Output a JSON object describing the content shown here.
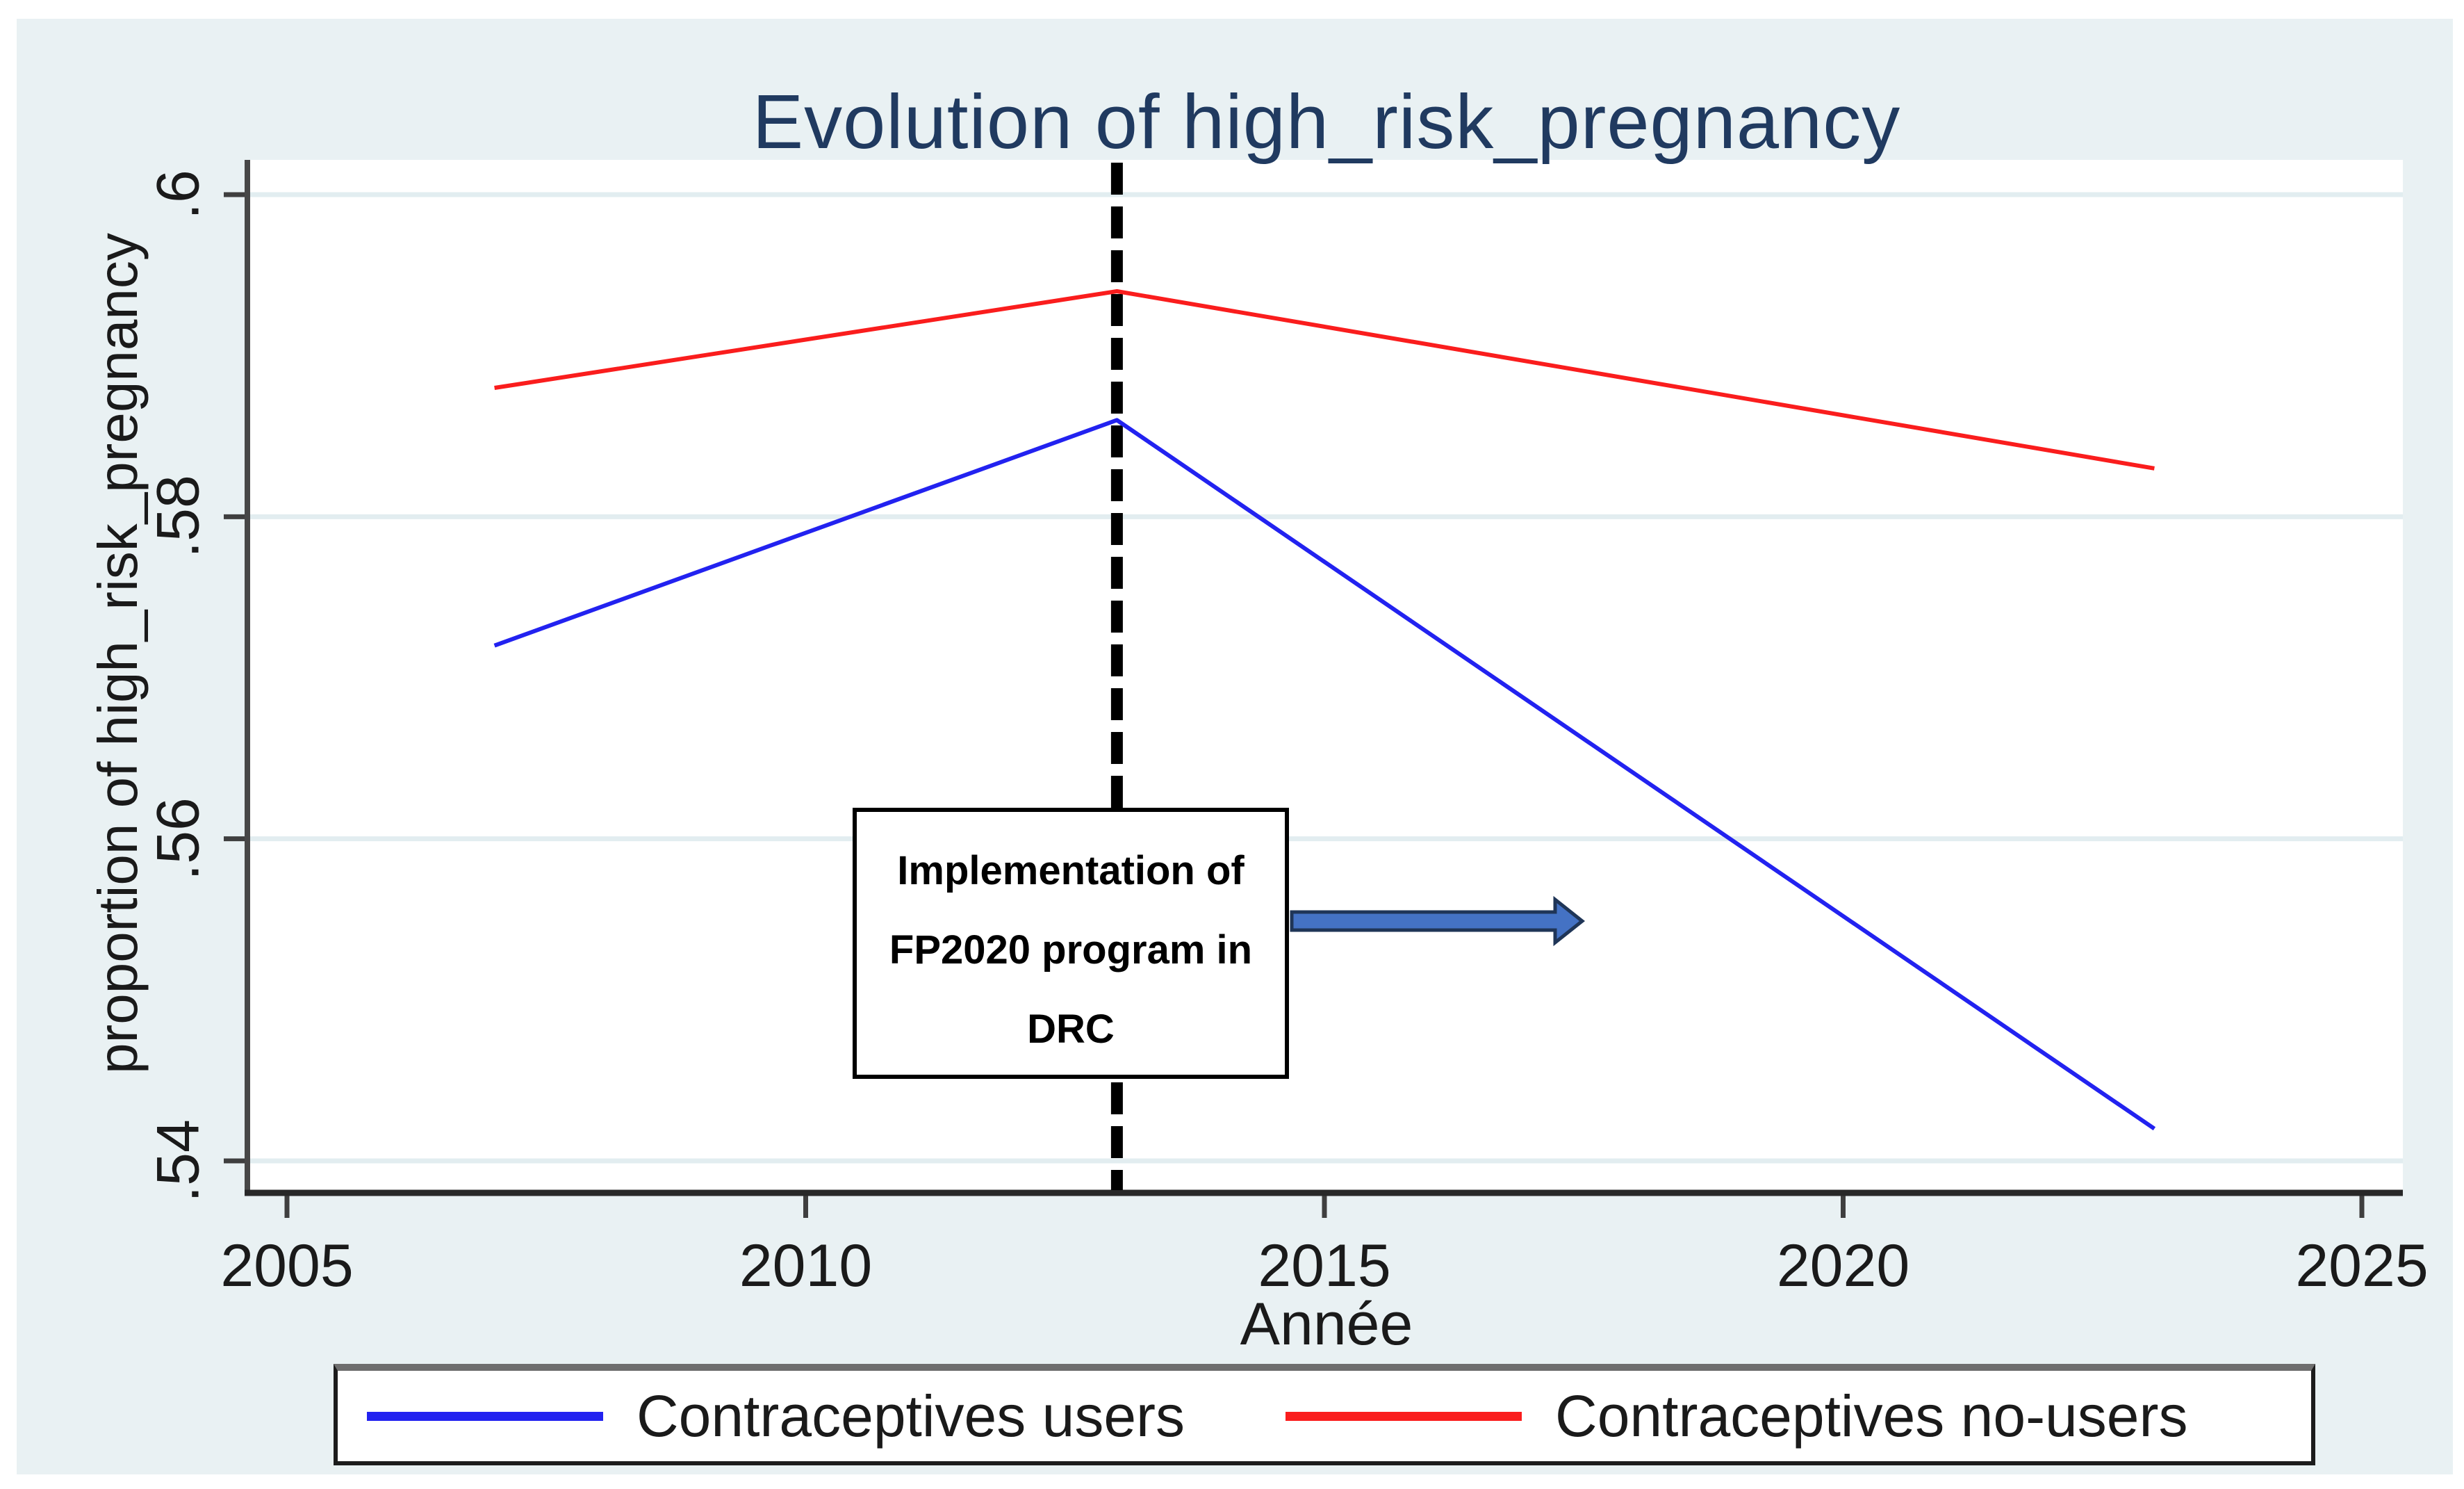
{
  "chart_data": {
    "type": "line",
    "title": "Evolution of high_risk_pregnancy",
    "xlabel": "Année",
    "ylabel": "proportion of high_risk_pregnancy",
    "x": [
      2007,
      2013,
      2023
    ],
    "series": [
      {
        "name": "Contraceptives users",
        "color": "#2222f0",
        "values": [
          0.572,
          0.586,
          0.542
        ]
      },
      {
        "name": "Contraceptives no-users",
        "color": "#fa1d1d",
        "values": [
          0.588,
          0.594,
          0.583
        ]
      }
    ],
    "xlim": [
      2005,
      2025
    ],
    "ylim": [
      0.54,
      0.6
    ],
    "xticks": [
      {
        "label": "2005",
        "value": 2005
      },
      {
        "label": "2010",
        "value": 2010
      },
      {
        "label": "2015",
        "value": 2015
      },
      {
        "label": "2020",
        "value": 2020
      },
      {
        "label": "2025",
        "value": 2025
      }
    ],
    "yticks": [
      {
        "label": ".54",
        "value": 0.54
      },
      {
        "label": ".56",
        "value": 0.56
      },
      {
        "label": ".58",
        "value": 0.58
      },
      {
        "label": ".6",
        "value": 0.6
      }
    ],
    "grid": "horizontal",
    "legend_position": "bottom",
    "vline": {
      "x": 2013,
      "style": "dashed",
      "color": "#000000"
    },
    "annotation": {
      "lines": [
        "Implementation of",
        "FP2020 program in",
        "DRC"
      ],
      "arrow_direction": "right"
    }
  },
  "colors": {
    "canvas_bg": "#e9f1f3",
    "plot_bg": "#ffffff",
    "grid": "#e2edf0",
    "axis_spine": "#474747",
    "axis_bottom": "#282828",
    "tick": "#3f3f3f",
    "title": "#203a60",
    "text": "#1a1a1a",
    "arrow_fill": "#4472c4",
    "arrow_border": "#1f3557",
    "annotation_border": "#000000",
    "legend_border": "#1c1c1c",
    "legend_shadow": "#6e6e6e"
  }
}
